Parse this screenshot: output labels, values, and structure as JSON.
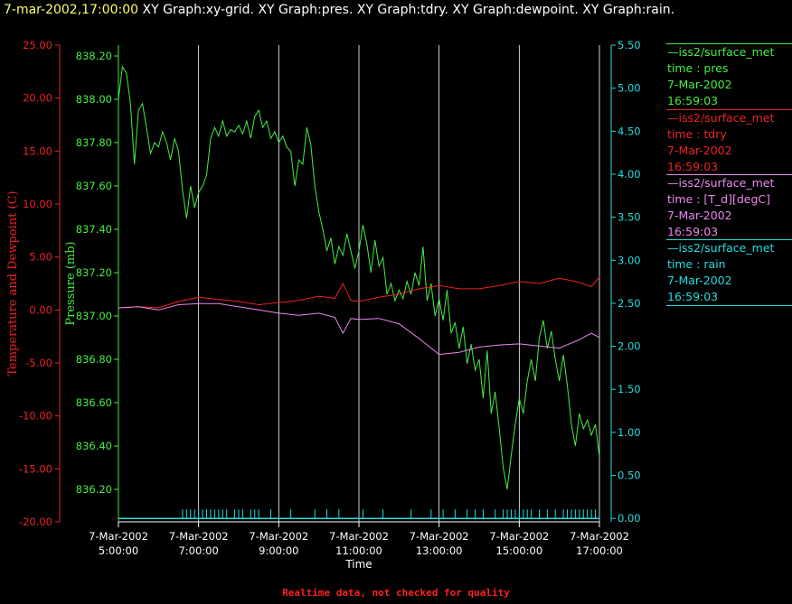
{
  "header": {
    "timestamp": "7-mar-2002,17:00:00",
    "graphs": "XY Graph:xy-grid.  XY Graph:pres.  XY Graph:tdry.  XY Graph:dewpoint.  XY Graph:rain."
  },
  "footer": "Realtime data, not checked for quality",
  "colors": {
    "pres": "#44ee44",
    "tdry": "#ee2222",
    "dew": "#ee88ee",
    "rain": "#22dddd",
    "grid": "#ffffff"
  },
  "legend": [
    {
      "key": "pres",
      "lines": [
        "—iss2/surface_met",
        "time : pres",
        "7-Mar-2002",
        "16:59:03"
      ]
    },
    {
      "key": "tdry",
      "lines": [
        "—iss2/surface_met",
        "time : tdry",
        "7-Mar-2002",
        "16:59:03"
      ]
    },
    {
      "key": "dew",
      "lines": [
        "—iss2/surface_met",
        "time : [T_d][degC]",
        "7-Mar-2002",
        "16:59:03"
      ]
    },
    {
      "key": "rain",
      "lines": [
        "—iss2/surface_met",
        "time : rain",
        "7-Mar-2002",
        "16:59:03"
      ]
    }
  ],
  "chart_data": {
    "type": "line",
    "xlabel": "Time",
    "x_range": [
      5,
      17
    ],
    "x_ticks": [
      {
        "x": 5,
        "date": "7-Mar-2002",
        "time": "5:00:00"
      },
      {
        "x": 7,
        "date": "7-Mar-2002",
        "time": "7:00:00"
      },
      {
        "x": 9,
        "date": "7-Mar-2002",
        "time": "9:00:00"
      },
      {
        "x": 11,
        "date": "7-Mar-2002",
        "time": "11:00:00"
      },
      {
        "x": 13,
        "date": "7-Mar-2002",
        "time": "13:00:00"
      },
      {
        "x": 15,
        "date": "7-Mar-2002",
        "time": "15:00:00"
      },
      {
        "x": 17,
        "date": "7-Mar-2002",
        "time": "17:00:00"
      }
    ],
    "grid": "vertical",
    "axes": {
      "temp": {
        "label": "Temperature and Dewpoint (C)",
        "range": [
          -20,
          25
        ],
        "ticks": [
          "25.00",
          "20.00",
          "15.00",
          "10.00",
          "5.00",
          "0.00",
          "-5.00",
          "-10.00",
          "-15.00",
          "-20.00"
        ]
      },
      "pres": {
        "label": "Pressure (mb)",
        "range": [
          836.05,
          838.25
        ],
        "ticks": [
          "838.20",
          "838.00",
          "837.80",
          "837.60",
          "837.40",
          "837.20",
          "837.00",
          "836.80",
          "836.60",
          "836.40",
          "836.20"
        ]
      },
      "rain": {
        "label": "",
        "range": [
          -0.04,
          5.5
        ],
        "ticks": [
          "5.50",
          "5.00",
          "4.50",
          "4.00",
          "3.50",
          "3.00",
          "2.50",
          "2.00",
          "1.50",
          "1.00",
          "0.50",
          "0.00"
        ]
      }
    },
    "series": [
      {
        "key": "pres",
        "axis": "pres",
        "points": [
          [
            5.0,
            838.0
          ],
          [
            5.1,
            838.15
          ],
          [
            5.2,
            838.12
          ],
          [
            5.3,
            837.98
          ],
          [
            5.4,
            837.7
          ],
          [
            5.5,
            837.95
          ],
          [
            5.6,
            837.98
          ],
          [
            5.7,
            837.87
          ],
          [
            5.8,
            837.75
          ],
          [
            5.9,
            837.8
          ],
          [
            6.0,
            837.78
          ],
          [
            6.1,
            837.85
          ],
          [
            6.2,
            837.8
          ],
          [
            6.3,
            837.72
          ],
          [
            6.4,
            837.82
          ],
          [
            6.5,
            837.76
          ],
          [
            6.6,
            837.58
          ],
          [
            6.7,
            837.45
          ],
          [
            6.8,
            837.6
          ],
          [
            6.9,
            837.5
          ],
          [
            7.0,
            837.57
          ],
          [
            7.1,
            837.6
          ],
          [
            7.2,
            837.65
          ],
          [
            7.3,
            837.82
          ],
          [
            7.4,
            837.87
          ],
          [
            7.5,
            837.83
          ],
          [
            7.6,
            837.9
          ],
          [
            7.7,
            837.83
          ],
          [
            7.8,
            837.86
          ],
          [
            7.9,
            837.85
          ],
          [
            8.0,
            837.88
          ],
          [
            8.1,
            837.84
          ],
          [
            8.2,
            837.9
          ],
          [
            8.3,
            837.82
          ],
          [
            8.4,
            837.92
          ],
          [
            8.5,
            837.95
          ],
          [
            8.6,
            837.87
          ],
          [
            8.7,
            837.9
          ],
          [
            8.8,
            837.82
          ],
          [
            8.9,
            837.85
          ],
          [
            9.0,
            837.8
          ],
          [
            9.1,
            837.83
          ],
          [
            9.2,
            837.78
          ],
          [
            9.3,
            837.76
          ],
          [
            9.4,
            837.6
          ],
          [
            9.5,
            837.72
          ],
          [
            9.6,
            837.7
          ],
          [
            9.7,
            837.87
          ],
          [
            9.8,
            837.79
          ],
          [
            9.9,
            837.6
          ],
          [
            10.0,
            837.48
          ],
          [
            10.1,
            837.4
          ],
          [
            10.2,
            837.3
          ],
          [
            10.3,
            837.36
          ],
          [
            10.4,
            837.24
          ],
          [
            10.5,
            837.32
          ],
          [
            10.6,
            837.28
          ],
          [
            10.7,
            837.38
          ],
          [
            10.8,
            837.3
          ],
          [
            10.9,
            837.22
          ],
          [
            11.0,
            837.3
          ],
          [
            11.1,
            837.42
          ],
          [
            11.2,
            837.33
          ],
          [
            11.3,
            837.2
          ],
          [
            11.4,
            837.35
          ],
          [
            11.5,
            837.23
          ],
          [
            11.6,
            837.27
          ],
          [
            11.7,
            837.1
          ],
          [
            11.8,
            837.15
          ],
          [
            11.9,
            837.07
          ],
          [
            12.0,
            837.12
          ],
          [
            12.1,
            837.08
          ],
          [
            12.2,
            837.16
          ],
          [
            12.3,
            837.1
          ],
          [
            12.4,
            837.2
          ],
          [
            12.5,
            837.14
          ],
          [
            12.6,
            837.32
          ],
          [
            12.7,
            837.07
          ],
          [
            12.8,
            837.15
          ],
          [
            12.9,
            837.0
          ],
          [
            13.0,
            837.08
          ],
          [
            13.1,
            836.98
          ],
          [
            13.2,
            837.12
          ],
          [
            13.3,
            836.92
          ],
          [
            13.4,
            836.97
          ],
          [
            13.5,
            836.85
          ],
          [
            13.6,
            836.95
          ],
          [
            13.7,
            836.78
          ],
          [
            13.8,
            836.87
          ],
          [
            13.9,
            836.75
          ],
          [
            14.0,
            836.8
          ],
          [
            14.1,
            836.62
          ],
          [
            14.2,
            836.84
          ],
          [
            14.3,
            836.55
          ],
          [
            14.4,
            836.65
          ],
          [
            14.5,
            836.48
          ],
          [
            14.6,
            836.3
          ],
          [
            14.7,
            836.2
          ],
          [
            14.8,
            836.36
          ],
          [
            14.9,
            836.5
          ],
          [
            15.0,
            836.62
          ],
          [
            15.1,
            836.55
          ],
          [
            15.2,
            836.7
          ],
          [
            15.3,
            836.8
          ],
          [
            15.4,
            836.7
          ],
          [
            15.5,
            836.9
          ],
          [
            15.6,
            836.98
          ],
          [
            15.7,
            836.85
          ],
          [
            15.8,
            836.93
          ],
          [
            15.9,
            836.8
          ],
          [
            16.0,
            836.7
          ],
          [
            16.1,
            836.82
          ],
          [
            16.2,
            836.68
          ],
          [
            16.3,
            836.5
          ],
          [
            16.4,
            836.4
          ],
          [
            16.5,
            836.55
          ],
          [
            16.6,
            836.48
          ],
          [
            16.7,
            836.52
          ],
          [
            16.8,
            836.45
          ],
          [
            16.9,
            836.5
          ],
          [
            17.0,
            836.35
          ]
        ]
      },
      {
        "key": "tdry",
        "axis": "temp",
        "points": [
          [
            5.0,
            0.2
          ],
          [
            5.5,
            0.3
          ],
          [
            6.0,
            0.2
          ],
          [
            6.5,
            0.8
          ],
          [
            7.0,
            1.2
          ],
          [
            7.5,
            1.0
          ],
          [
            8.0,
            0.8
          ],
          [
            8.5,
            0.5
          ],
          [
            9.0,
            0.7
          ],
          [
            9.5,
            0.9
          ],
          [
            10.0,
            1.3
          ],
          [
            10.4,
            1.1
          ],
          [
            10.6,
            2.5
          ],
          [
            10.8,
            0.9
          ],
          [
            11.0,
            0.8
          ],
          [
            11.5,
            1.2
          ],
          [
            12.0,
            1.5
          ],
          [
            12.5,
            2.0
          ],
          [
            13.0,
            2.3
          ],
          [
            13.5,
            2.0
          ],
          [
            14.0,
            2.0
          ],
          [
            14.5,
            2.3
          ],
          [
            15.0,
            2.7
          ],
          [
            15.5,
            2.5
          ],
          [
            16.0,
            3.0
          ],
          [
            16.5,
            2.6
          ],
          [
            16.8,
            2.2
          ],
          [
            17.0,
            3.1
          ]
        ]
      },
      {
        "key": "dew",
        "axis": "temp",
        "points": [
          [
            5.0,
            0.2
          ],
          [
            5.5,
            0.3
          ],
          [
            6.0,
            0.0
          ],
          [
            6.5,
            0.5
          ],
          [
            7.0,
            0.6
          ],
          [
            7.5,
            0.6
          ],
          [
            8.0,
            0.3
          ],
          [
            8.5,
            0.0
          ],
          [
            9.0,
            -0.3
          ],
          [
            9.5,
            -0.5
          ],
          [
            10.0,
            -0.3
          ],
          [
            10.4,
            -0.7
          ],
          [
            10.6,
            -2.2
          ],
          [
            10.8,
            -0.8
          ],
          [
            11.0,
            -0.9
          ],
          [
            11.5,
            -0.8
          ],
          [
            12.0,
            -1.3
          ],
          [
            12.5,
            -2.7
          ],
          [
            13.0,
            -4.2
          ],
          [
            13.5,
            -4.0
          ],
          [
            14.0,
            -3.5
          ],
          [
            14.5,
            -3.3
          ],
          [
            15.0,
            -3.2
          ],
          [
            15.5,
            -3.4
          ],
          [
            16.0,
            -3.6
          ],
          [
            16.5,
            -2.8
          ],
          [
            16.8,
            -2.2
          ],
          [
            17.0,
            -2.6
          ]
        ]
      },
      {
        "key": "rain",
        "axis": "rain",
        "baseline": 0.0,
        "tip_times": [
          6.6,
          6.7,
          6.8,
          6.9,
          7.0,
          7.1,
          7.2,
          7.3,
          7.4,
          7.5,
          7.6,
          7.7,
          7.9,
          8.0,
          8.1,
          8.3,
          8.4,
          8.5,
          8.8,
          9.3,
          9.9,
          10.2,
          10.5,
          11.1,
          11.6,
          12.3,
          12.8,
          13.1,
          13.4,
          13.7,
          13.9,
          14.1,
          14.4,
          14.6,
          14.7,
          14.8,
          14.9,
          15.0,
          15.1,
          15.2,
          15.3,
          15.5,
          15.7,
          15.9,
          16.1,
          16.2,
          16.3,
          16.4,
          16.5,
          16.6,
          16.7,
          16.8,
          16.9
        ]
      }
    ]
  }
}
